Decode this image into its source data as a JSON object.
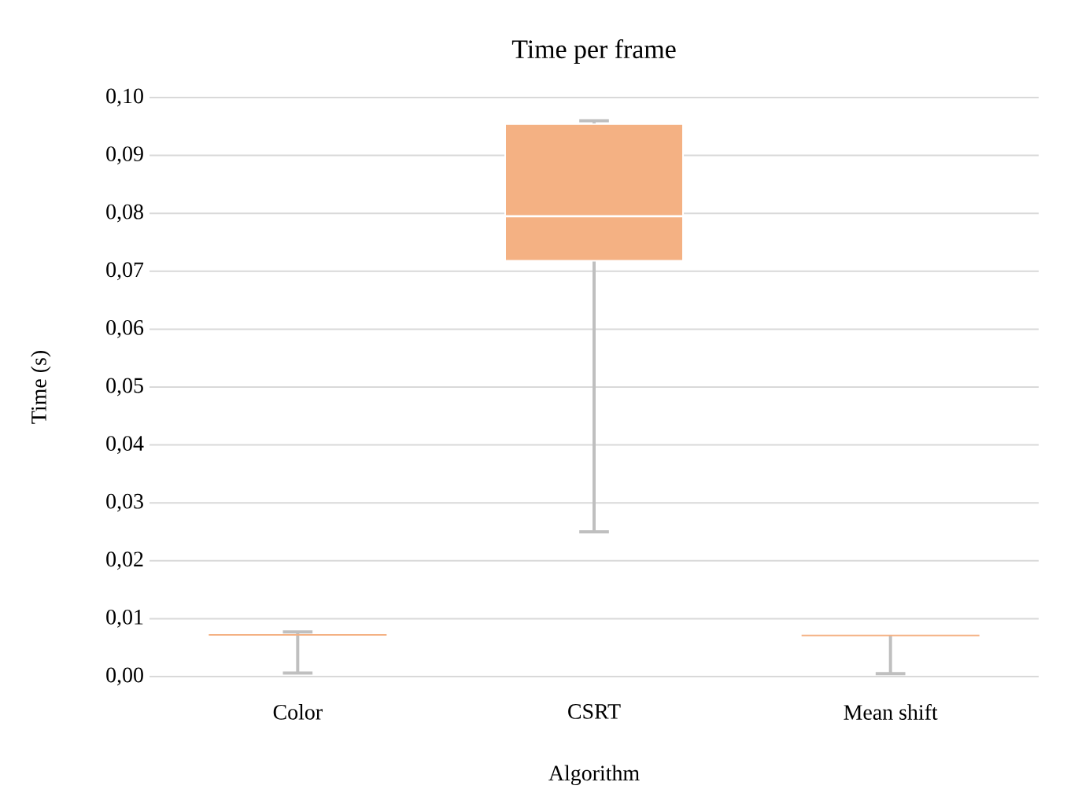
{
  "chart_data": {
    "type": "box",
    "title": "Time per frame",
    "xlabel": "Algorithm",
    "ylabel": "Time (s)",
    "categories": [
      "Color",
      "CSRT",
      "Mean shift"
    ],
    "series": [
      {
        "color": "#f4b183",
        "boxes": [
          {
            "low": 0.0006,
            "q1": 0.0072,
            "median": 0.0072,
            "q3": 0.0072,
            "high": 0.0077
          },
          {
            "low": 0.025,
            "q1": 0.0718,
            "median": 0.0795,
            "q3": 0.0954,
            "high": 0.096
          },
          {
            "low": 0.0005,
            "q1": 0.0071,
            "median": 0.0071,
            "q3": 0.0071,
            "high": 0.0071
          }
        ]
      }
    ],
    "ylim": [
      0,
      0.1
    ],
    "yticks": [
      {
        "value": 0,
        "label": "0,00"
      },
      {
        "value": 0.01,
        "label": "0,01"
      },
      {
        "value": 0.02,
        "label": "0,02"
      },
      {
        "value": 0.03,
        "label": "0,03"
      },
      {
        "value": 0.04,
        "label": "0,04"
      },
      {
        "value": 0.05,
        "label": "0,05"
      },
      {
        "value": 0.06,
        "label": "0,06"
      },
      {
        "value": 0.07,
        "label": "0,07"
      },
      {
        "value": 0.08,
        "label": "0,08"
      },
      {
        "value": 0.09,
        "label": "0,09"
      },
      {
        "value": 0.1,
        "label": "0,10"
      }
    ],
    "grid": "y"
  }
}
